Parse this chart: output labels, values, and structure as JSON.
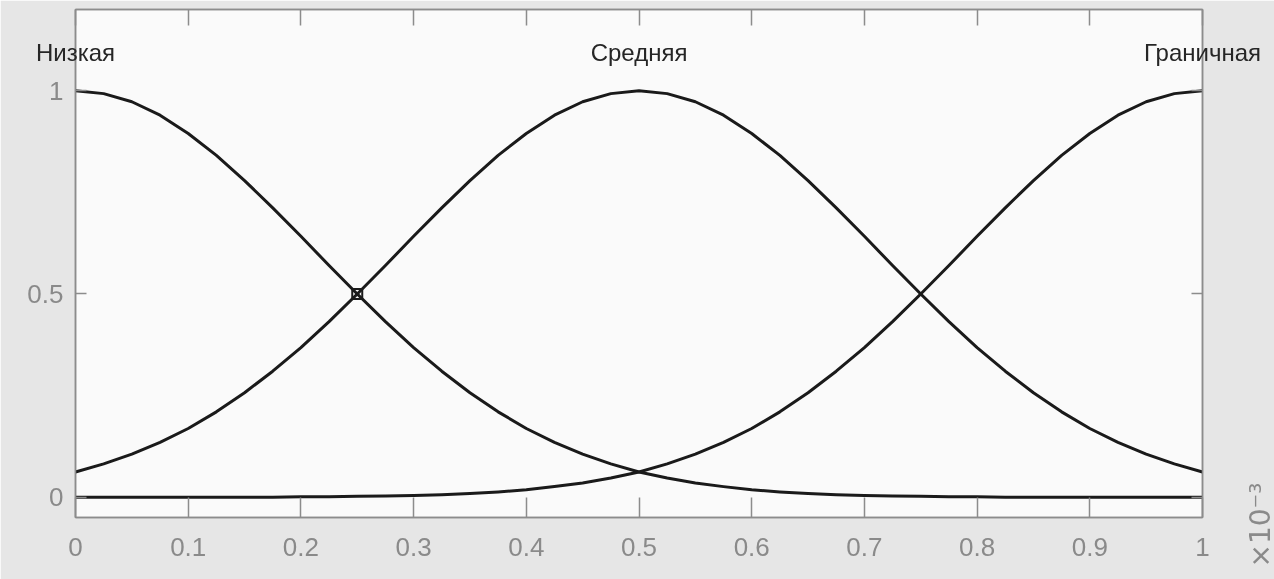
{
  "chart_data": {
    "type": "line",
    "xlim": [
      0,
      1
    ],
    "ylim": [
      -0.05,
      1.2
    ],
    "xticks": [
      0,
      0.1,
      0.2,
      0.3,
      0.4,
      0.5,
      0.6,
      0.7,
      0.8,
      0.9,
      1
    ],
    "yticks": [
      0,
      0.5,
      1
    ],
    "annotations": [
      "×10⁻³"
    ],
    "x": [
      0,
      0.025,
      0.05,
      0.075,
      0.1,
      0.125,
      0.15,
      0.175,
      0.2,
      0.225,
      0.25,
      0.275,
      0.3,
      0.325,
      0.35,
      0.375,
      0.4,
      0.425,
      0.45,
      0.475,
      0.5,
      0.525,
      0.55,
      0.575,
      0.6,
      0.625,
      0.65,
      0.675,
      0.7,
      0.725,
      0.75,
      0.775,
      0.8,
      0.825,
      0.85,
      0.875,
      0.9,
      0.925,
      0.95,
      0.975,
      1
    ],
    "series": [
      {
        "name": "Низкая",
        "color": "#1a1a1a",
        "values": [
          1,
          0.993,
          0.973,
          0.94,
          0.895,
          0.841,
          0.779,
          0.712,
          0.642,
          0.57,
          0.5,
          0.432,
          0.368,
          0.31,
          0.257,
          0.21,
          0.169,
          0.135,
          0.106,
          0.082,
          0.062,
          0.047,
          0.035,
          0.026,
          0.018,
          0.013,
          0.009,
          0.006,
          0.004,
          0.003,
          0.002,
          0.001,
          0.001,
          0,
          0,
          0,
          0,
          0,
          0,
          0,
          0
        ]
      },
      {
        "name": "Средняя",
        "color": "#1a1a1a",
        "values": [
          0.062,
          0.082,
          0.106,
          0.135,
          0.169,
          0.21,
          0.257,
          0.31,
          0.368,
          0.432,
          0.5,
          0.57,
          0.642,
          0.712,
          0.779,
          0.841,
          0.895,
          0.94,
          0.973,
          0.993,
          1,
          0.993,
          0.973,
          0.94,
          0.895,
          0.841,
          0.779,
          0.712,
          0.642,
          0.57,
          0.5,
          0.432,
          0.368,
          0.31,
          0.257,
          0.21,
          0.169,
          0.135,
          0.106,
          0.082,
          0.062
        ]
      },
      {
        "name": "Граничная",
        "color": "#1a1a1a",
        "values": [
          0,
          0,
          0,
          0,
          0,
          0,
          0,
          0,
          0.001,
          0.001,
          0.002,
          0.003,
          0.004,
          0.006,
          0.009,
          0.013,
          0.018,
          0.026,
          0.035,
          0.047,
          0.062,
          0.082,
          0.106,
          0.135,
          0.169,
          0.21,
          0.257,
          0.31,
          0.368,
          0.432,
          0.5,
          0.57,
          0.642,
          0.712,
          0.779,
          0.841,
          0.895,
          0.94,
          0.973,
          0.993,
          1
        ]
      },
      {
        "type": "scatter",
        "marker": "square",
        "color": "#1a1a1a",
        "x": [
          0.25
        ],
        "values": [
          0.5
        ]
      }
    ]
  }
}
